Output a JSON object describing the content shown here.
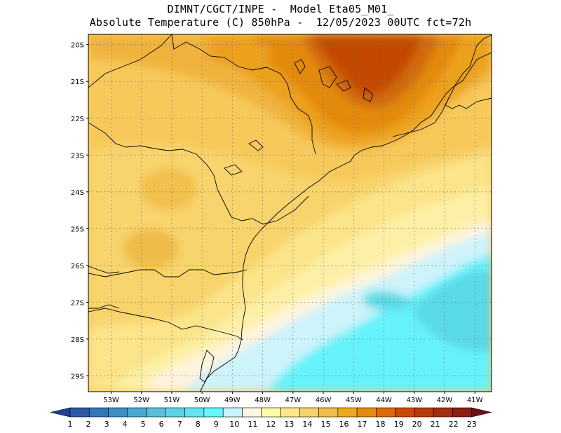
{
  "header": {
    "line1": "DIMNT/CGCT/INPE -  Model Eta05_M01_",
    "line2": "Absolute Temperature (C) 850hPa -  12/05/2023 00UTC fct=72h"
  },
  "map": {
    "lat_labels": [
      "20S",
      "21S",
      "22S",
      "23S",
      "24S",
      "25S",
      "26S",
      "27S",
      "28S",
      "29S"
    ],
    "lon_labels": [
      "53W",
      "52W",
      "51W",
      "50W",
      "49W",
      "48W",
      "47W",
      "46W",
      "45W",
      "44W",
      "43W",
      "42W",
      "41W"
    ],
    "lon_range": [
      53.75,
      40.45
    ],
    "lat_range": [
      19.72,
      29.43
    ],
    "grid": "dotted"
  },
  "colorbar": {
    "labels": [
      "1",
      "2",
      "3",
      "4",
      "5",
      "6",
      "7",
      "8",
      "9",
      "10",
      "11",
      "12",
      "13",
      "14",
      "15",
      "16",
      "17",
      "18",
      "19",
      "20",
      "21",
      "22",
      "23"
    ],
    "colors": [
      "#1f3f99",
      "#2b5aa8",
      "#3576b8",
      "#3f8fc6",
      "#4aa9d3",
      "#56c0dd",
      "#5fd3e6",
      "#62e3ef",
      "#66f6fb",
      "#c9f3fb",
      "#fff6e4",
      "#fff9aa",
      "#fde98c",
      "#f8d26a",
      "#f1be4c",
      "#eeaa1f",
      "#e68a0d",
      "#dc6a08",
      "#c94a06",
      "#b83a0b",
      "#a22d10",
      "#8a1e12",
      "#6e0f17"
    ]
  }
}
